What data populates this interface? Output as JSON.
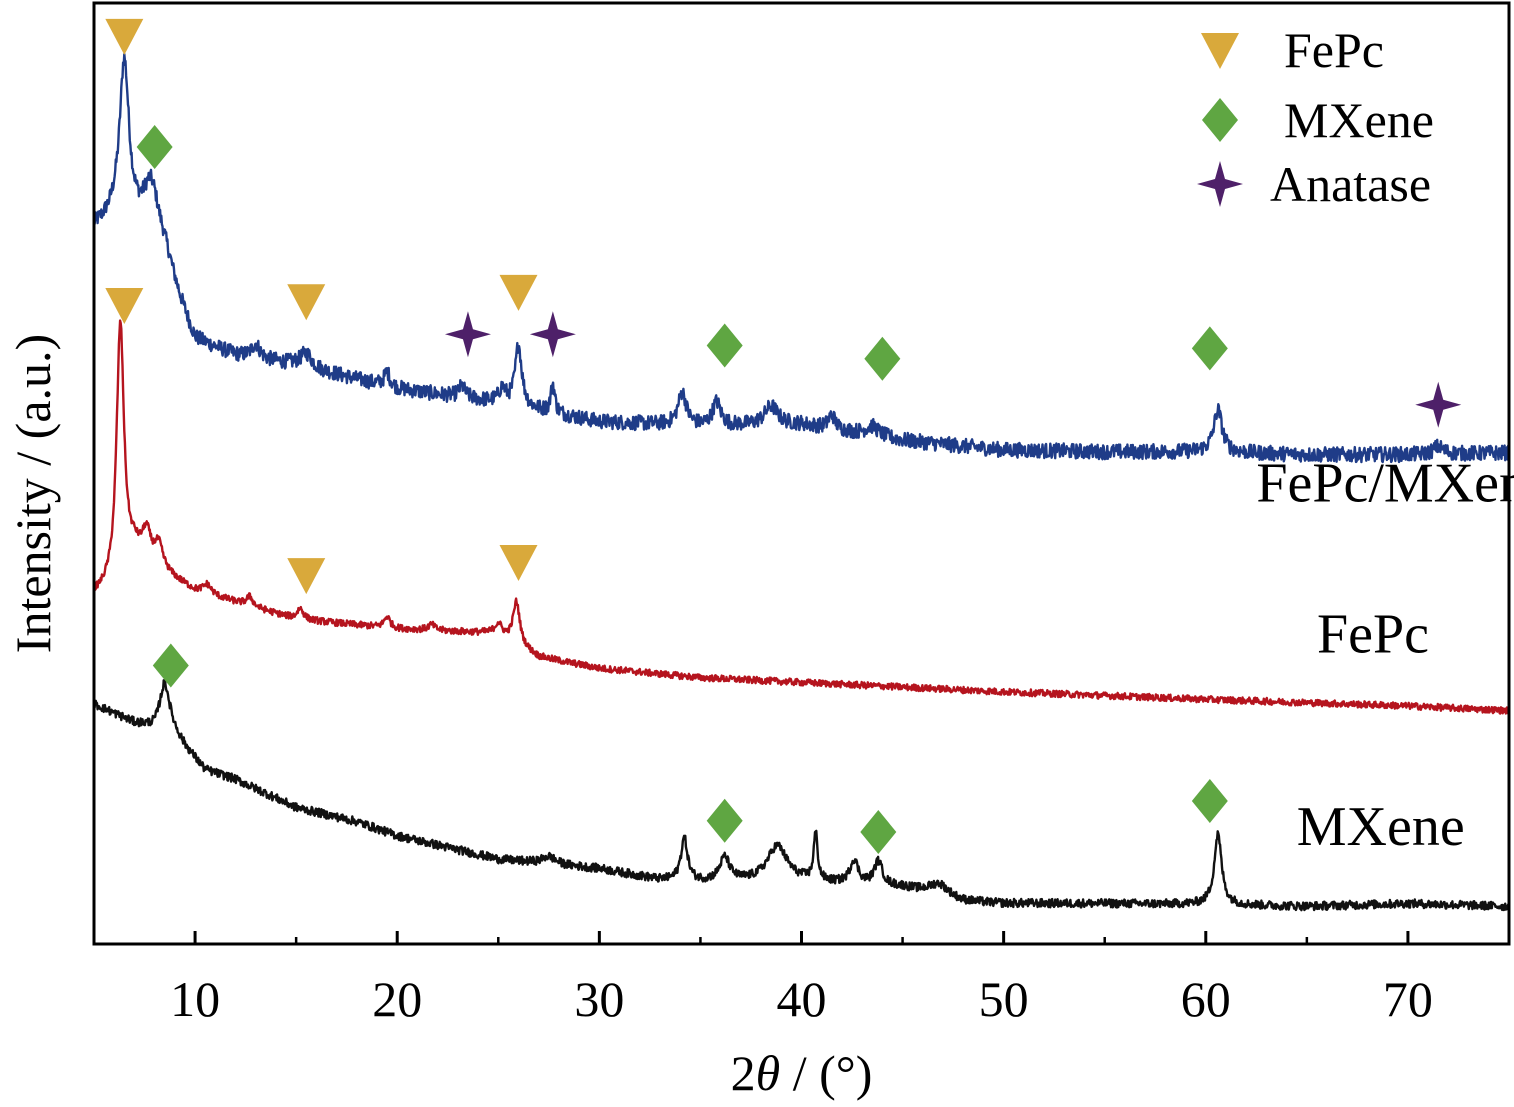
{
  "chart_data": {
    "type": "line",
    "title": "",
    "xlabel": "2θ / (°)",
    "xlabel_parts": {
      "symbol_prefix": "2",
      "symbol": "θ",
      "suffix": " / (°)"
    },
    "ylabel": "Intensity / (a.u.)",
    "xlim": [
      5,
      75
    ],
    "ylim": [
      0,
      100
    ],
    "y_tick_labels_shown": false,
    "grid": false,
    "x_ticks": [
      10,
      20,
      30,
      40,
      50,
      60,
      70
    ],
    "x_tick_labels": [
      "10",
      "20",
      "30",
      "40",
      "50",
      "60",
      "70"
    ],
    "legend": {
      "position": "top-right",
      "entries": [
        {
          "label": "FePc",
          "marker": "triangle-down",
          "color": "#D9A93B"
        },
        {
          "label": "MXene",
          "marker": "diamond",
          "color": "#5FA642"
        },
        {
          "label": "Anatase",
          "marker": "star4",
          "color": "#4E2069"
        }
      ]
    },
    "series": [
      {
        "name": "FePc/MXene",
        "color": "#1F3C88",
        "baseline": 56,
        "label_position": [
          62.5,
          47
        ],
        "noise": 0.8,
        "background": [
          [
            5,
            76
          ],
          [
            6,
            77
          ],
          [
            7,
            76
          ],
          [
            8,
            74
          ],
          [
            9,
            69
          ],
          [
            10,
            64
          ],
          [
            12,
            62.5
          ],
          [
            15,
            61.5
          ],
          [
            18,
            60
          ],
          [
            20,
            59
          ],
          [
            25,
            57.5
          ],
          [
            30,
            55.5
          ],
          [
            33,
            55.2
          ],
          [
            35,
            55
          ],
          [
            40,
            55.2
          ],
          [
            45,
            53.5
          ],
          [
            50,
            52.5
          ],
          [
            55,
            52.3
          ],
          [
            60,
            52.3
          ],
          [
            65,
            52
          ],
          [
            70,
            52
          ],
          [
            75,
            52.2
          ]
        ],
        "peaks": [
          [
            6.5,
            17,
            0.28
          ],
          [
            7.8,
            5.5,
            0.45
          ],
          [
            8.5,
            2,
            0.6
          ],
          [
            13,
            1.5,
            0.25
          ],
          [
            15.5,
            1.5,
            0.35
          ],
          [
            19.5,
            1.5,
            0.18
          ],
          [
            23.2,
            1.2,
            0.2
          ],
          [
            25.2,
            1.5,
            0.2
          ],
          [
            26,
            6.5,
            0.2
          ],
          [
            27.7,
            3,
            0.12
          ],
          [
            34.1,
            3.5,
            0.25
          ],
          [
            35.8,
            2.5,
            0.25
          ],
          [
            38.5,
            2,
            0.4
          ],
          [
            41.5,
            1.5,
            0.2
          ],
          [
            43.5,
            1,
            0.4
          ],
          [
            60.6,
            4.5,
            0.25
          ],
          [
            71.5,
            0.8,
            0.3
          ]
        ],
        "markers": [
          {
            "type": "triangle-down",
            "x": 6.5,
            "y": 96.5
          },
          {
            "type": "diamond",
            "x": 8,
            "y": 84.7
          },
          {
            "type": "triangle-down",
            "x": 15.5,
            "y": 68.3
          },
          {
            "type": "triangle-down",
            "x": 26,
            "y": 69.3
          },
          {
            "type": "star4",
            "x": 23.5,
            "y": 64.8
          },
          {
            "type": "star4",
            "x": 27.7,
            "y": 64.8
          },
          {
            "type": "diamond",
            "x": 36.2,
            "y": 63.6
          },
          {
            "type": "diamond",
            "x": 44,
            "y": 62.2
          },
          {
            "type": "diamond",
            "x": 60.2,
            "y": 63.3
          },
          {
            "type": "star4",
            "x": 71.5,
            "y": 57.3
          }
        ]
      },
      {
        "name": "FePc",
        "color": "#B5141E",
        "baseline": 30,
        "label_position": [
          65.5,
          31
        ],
        "noise": 0.35,
        "background": [
          [
            5,
            37
          ],
          [
            6,
            38
          ],
          [
            7,
            41.5
          ],
          [
            8,
            40
          ],
          [
            10,
            37.5
          ],
          [
            15,
            34.5
          ],
          [
            20,
            33.5
          ],
          [
            25,
            33
          ],
          [
            27,
            30.5
          ],
          [
            30,
            29.3
          ],
          [
            35,
            28.3
          ],
          [
            40,
            27.8
          ],
          [
            50,
            26.8
          ],
          [
            60,
            26
          ],
          [
            70,
            25.3
          ],
          [
            75,
            24.8
          ]
        ],
        "peaks": [
          [
            6.3,
            27,
            0.22
          ],
          [
            7.6,
            3,
            0.25
          ],
          [
            8.2,
            2.5,
            0.25
          ],
          [
            10.6,
            1,
            0.25
          ],
          [
            12.7,
            1,
            0.2
          ],
          [
            15.2,
            1.2,
            0.2
          ],
          [
            19.5,
            1.2,
            0.18
          ],
          [
            21.7,
            0.6,
            0.2
          ],
          [
            25,
            1,
            0.2
          ],
          [
            25.9,
            4.5,
            0.2
          ]
        ],
        "markers": [
          {
            "type": "triangle-down",
            "x": 6.5,
            "y": 67.9
          },
          {
            "type": "triangle-down",
            "x": 15.5,
            "y": 39.2
          },
          {
            "type": "triangle-down",
            "x": 26,
            "y": 40.6
          }
        ]
      },
      {
        "name": "MXene",
        "color": "#111111",
        "baseline": 10,
        "label_position": [
          64.5,
          10.5
        ],
        "noise": 0.45,
        "background": [
          [
            5,
            25.5
          ],
          [
            6,
            24.5
          ],
          [
            7,
            23.5
          ],
          [
            8,
            23
          ],
          [
            8.5,
            24
          ],
          [
            9.5,
            21
          ],
          [
            10.5,
            18.5
          ],
          [
            12,
            17.5
          ],
          [
            15,
            14.5
          ],
          [
            18,
            13
          ],
          [
            20,
            11.5
          ],
          [
            25,
            9
          ],
          [
            30,
            8
          ],
          [
            33,
            6.8
          ],
          [
            35,
            6.6
          ],
          [
            40,
            6.6
          ],
          [
            45,
            6
          ],
          [
            48,
            4.5
          ],
          [
            50,
            4.3
          ],
          [
            55,
            4.3
          ],
          [
            60,
            4.2
          ],
          [
            65,
            4
          ],
          [
            70,
            4.3
          ],
          [
            75,
            4
          ]
        ],
        "peaks": [
          [
            8.5,
            3.8,
            0.3
          ],
          [
            27.5,
            0.8,
            0.4
          ],
          [
            34.2,
            4.5,
            0.2
          ],
          [
            36.2,
            2.5,
            0.3
          ],
          [
            38.8,
            3.8,
            0.6
          ],
          [
            40.7,
            5,
            0.12
          ],
          [
            42.6,
            2.5,
            0.25
          ],
          [
            43.8,
            2.5,
            0.25
          ],
          [
            46.8,
            1.3,
            0.6
          ],
          [
            60.6,
            7.5,
            0.22
          ]
        ],
        "markers": [
          {
            "type": "diamond",
            "x": 8.8,
            "y": 29.6
          },
          {
            "type": "diamond",
            "x": 36.2,
            "y": 13.1
          },
          {
            "type": "diamond",
            "x": 43.8,
            "y": 11.9
          },
          {
            "type": "diamond",
            "x": 60.2,
            "y": 15.2
          }
        ]
      }
    ]
  }
}
